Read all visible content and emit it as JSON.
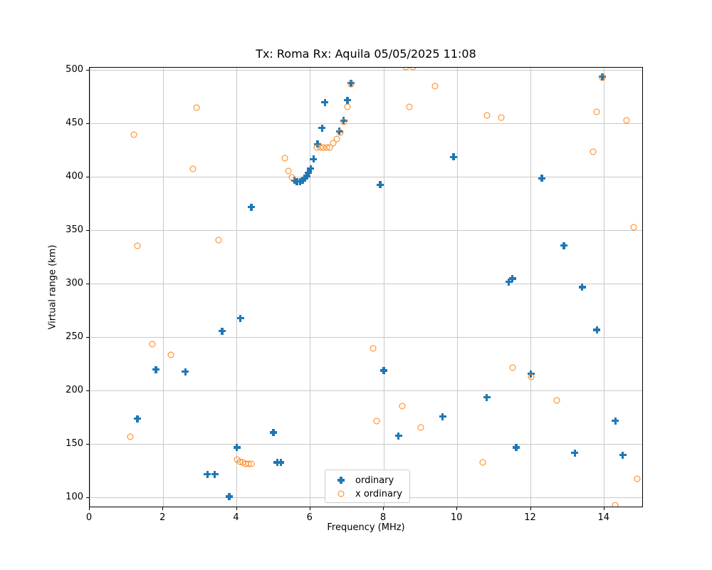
{
  "chart_data": {
    "type": "scatter",
    "title": "Tx: Roma Rx: Aquila 05/05/2025 11:08",
    "xlabel": "Frequency (MHz)",
    "ylabel": "Virtual range (km)",
    "xlim": [
      0,
      15.07
    ],
    "ylim": [
      90.4,
      502.5
    ],
    "xticks": [
      0,
      2,
      4,
      6,
      8,
      10,
      12,
      14
    ],
    "yticks": [
      100,
      150,
      200,
      250,
      300,
      350,
      400,
      450,
      500
    ],
    "grid": true,
    "legend_position": "lower center",
    "colors": {
      "grid": "#c9c9c9",
      "axis": "#000000",
      "background": "#ffffff"
    },
    "series": [
      {
        "name": "ordinary",
        "marker": "plus",
        "color": "#1f77b4",
        "points": [
          [
            1.3,
            174
          ],
          [
            1.8,
            220
          ],
          [
            2.6,
            218
          ],
          [
            3.2,
            122
          ],
          [
            3.4,
            122
          ],
          [
            3.6,
            256
          ],
          [
            3.8,
            101
          ],
          [
            4.0,
            147
          ],
          [
            4.1,
            268
          ],
          [
            4.4,
            372
          ],
          [
            5.0,
            161
          ],
          [
            5.1,
            133
          ],
          [
            5.2,
            133
          ],
          [
            5.57,
            397
          ],
          [
            5.64,
            396
          ],
          [
            5.72,
            396
          ],
          [
            5.79,
            397
          ],
          [
            5.85,
            399
          ],
          [
            5.9,
            401
          ],
          [
            5.95,
            404
          ],
          [
            6.01,
            408
          ],
          [
            6.09,
            417
          ],
          [
            6.2,
            431
          ],
          [
            6.32,
            446
          ],
          [
            6.4,
            470
          ],
          [
            6.79,
            443
          ],
          [
            6.91,
            453
          ],
          [
            7.01,
            472
          ],
          [
            7.11,
            488
          ],
          [
            7.9,
            393
          ],
          [
            8.0,
            219
          ],
          [
            8.4,
            158
          ],
          [
            9.6,
            176
          ],
          [
            9.9,
            419
          ],
          [
            10.8,
            194
          ],
          [
            11.4,
            302
          ],
          [
            11.5,
            305
          ],
          [
            11.6,
            147
          ],
          [
            12.0,
            216
          ],
          [
            12.3,
            399
          ],
          [
            12.9,
            336
          ],
          [
            13.2,
            142
          ],
          [
            13.4,
            297
          ],
          [
            13.8,
            257
          ],
          [
            13.95,
            494
          ],
          [
            14.3,
            172
          ],
          [
            14.5,
            140
          ]
        ]
      },
      {
        "name": "x ordinary",
        "marker": "circle",
        "color": "#ff7f0e",
        "points": [
          [
            1.1,
            157
          ],
          [
            1.2,
            440
          ],
          [
            1.3,
            336
          ],
          [
            1.7,
            244
          ],
          [
            2.2,
            234
          ],
          [
            2.8,
            408
          ],
          [
            2.9,
            465
          ],
          [
            3.5,
            341
          ],
          [
            4.0,
            136
          ],
          [
            4.08,
            134
          ],
          [
            4.16,
            133
          ],
          [
            4.24,
            132
          ],
          [
            4.32,
            132
          ],
          [
            4.4,
            132
          ],
          [
            5.3,
            418
          ],
          [
            5.4,
            406
          ],
          [
            5.5,
            400
          ],
          [
            6.18,
            428
          ],
          [
            6.27,
            428
          ],
          [
            6.36,
            428
          ],
          [
            6.45,
            428
          ],
          [
            6.52,
            428
          ],
          [
            6.62,
            432
          ],
          [
            6.72,
            436
          ],
          [
            6.82,
            442
          ],
          [
            6.91,
            452
          ],
          [
            7.01,
            466
          ],
          [
            7.11,
            487
          ],
          [
            7.7,
            240
          ],
          [
            7.8,
            172
          ],
          [
            8.5,
            186
          ],
          [
            8.6,
            503
          ],
          [
            8.7,
            466
          ],
          [
            8.8,
            503
          ],
          [
            9.0,
            166
          ],
          [
            9.4,
            485
          ],
          [
            10.7,
            133
          ],
          [
            10.8,
            458
          ],
          [
            11.2,
            456
          ],
          [
            11.5,
            222
          ],
          [
            12.0,
            213
          ],
          [
            12.7,
            191
          ],
          [
            13.7,
            424
          ],
          [
            13.8,
            461
          ],
          [
            13.95,
            493
          ],
          [
            14.3,
            93
          ],
          [
            14.6,
            453
          ],
          [
            14.8,
            353
          ],
          [
            14.9,
            118
          ]
        ]
      }
    ]
  }
}
